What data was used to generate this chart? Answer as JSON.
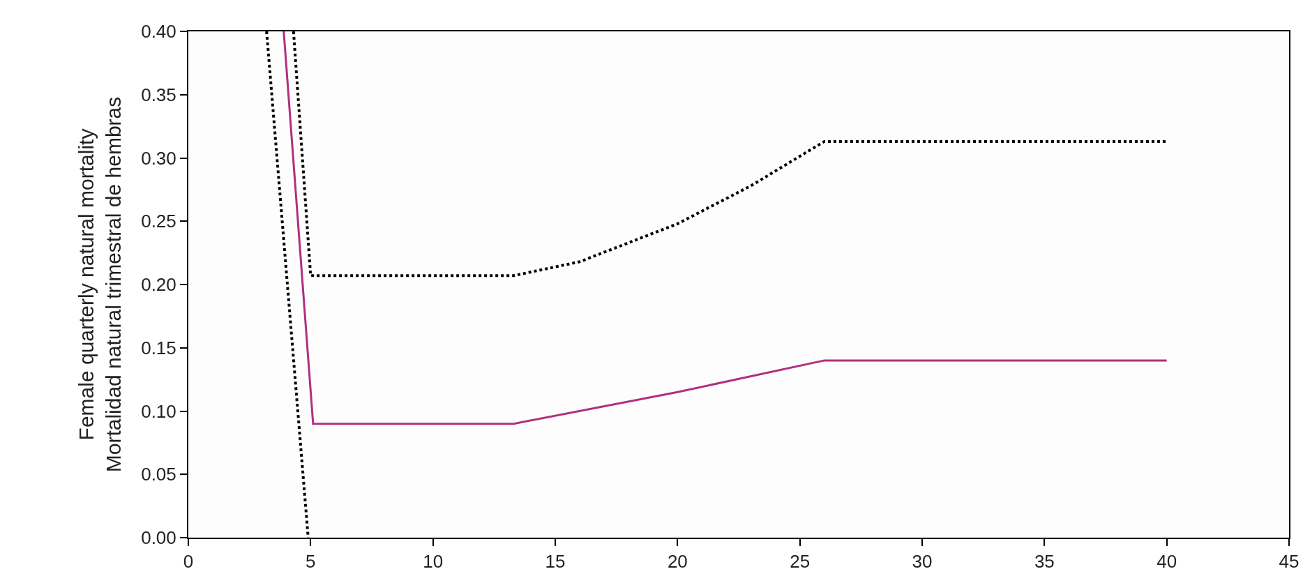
{
  "chart_data": {
    "type": "line",
    "ylabel": "Female quarterly natural mortality\nMortalidad natural trimestral de hembras",
    "xlim": [
      0,
      45
    ],
    "xticks": [
      0,
      5,
      10,
      15,
      20,
      25,
      30,
      35,
      40,
      45
    ],
    "ylim": [
      0,
      0.4
    ],
    "yticks": [
      {
        "value": 0,
        "label": "0.00"
      },
      {
        "value": 0.05,
        "label": "0.05"
      },
      {
        "value": 0.1,
        "label": "0.10"
      },
      {
        "value": 0.15,
        "label": "0.15"
      },
      {
        "value": 0.2,
        "label": "0.20"
      },
      {
        "value": 0.25,
        "label": "0.25"
      },
      {
        "value": 0.3,
        "label": "0.30"
      },
      {
        "value": 0.35,
        "label": "0.35"
      },
      {
        "value": 0.4,
        "label": "0.40"
      }
    ],
    "marker": "none",
    "series": [
      {
        "color": "#b0307f",
        "line_style": "solid",
        "x": [
          3.9,
          5.1,
          13.3,
          20,
          26,
          40
        ],
        "values": [
          0.4,
          0.09,
          0.09,
          0.115,
          0.14,
          0.14
        ]
      },
      {
        "color": "#000000",
        "line_style": "dotted",
        "x": [
          4.3,
          5.0,
          13.3,
          16,
          20,
          23,
          26,
          40
        ],
        "values": [
          0.4,
          0.207,
          0.207,
          0.218,
          0.248,
          0.278,
          0.313,
          0.313
        ]
      },
      {
        "color": "#000000",
        "line_style": "dotted",
        "x": [
          3.2,
          4.9
        ],
        "values": [
          0.4,
          0
        ]
      }
    ]
  }
}
